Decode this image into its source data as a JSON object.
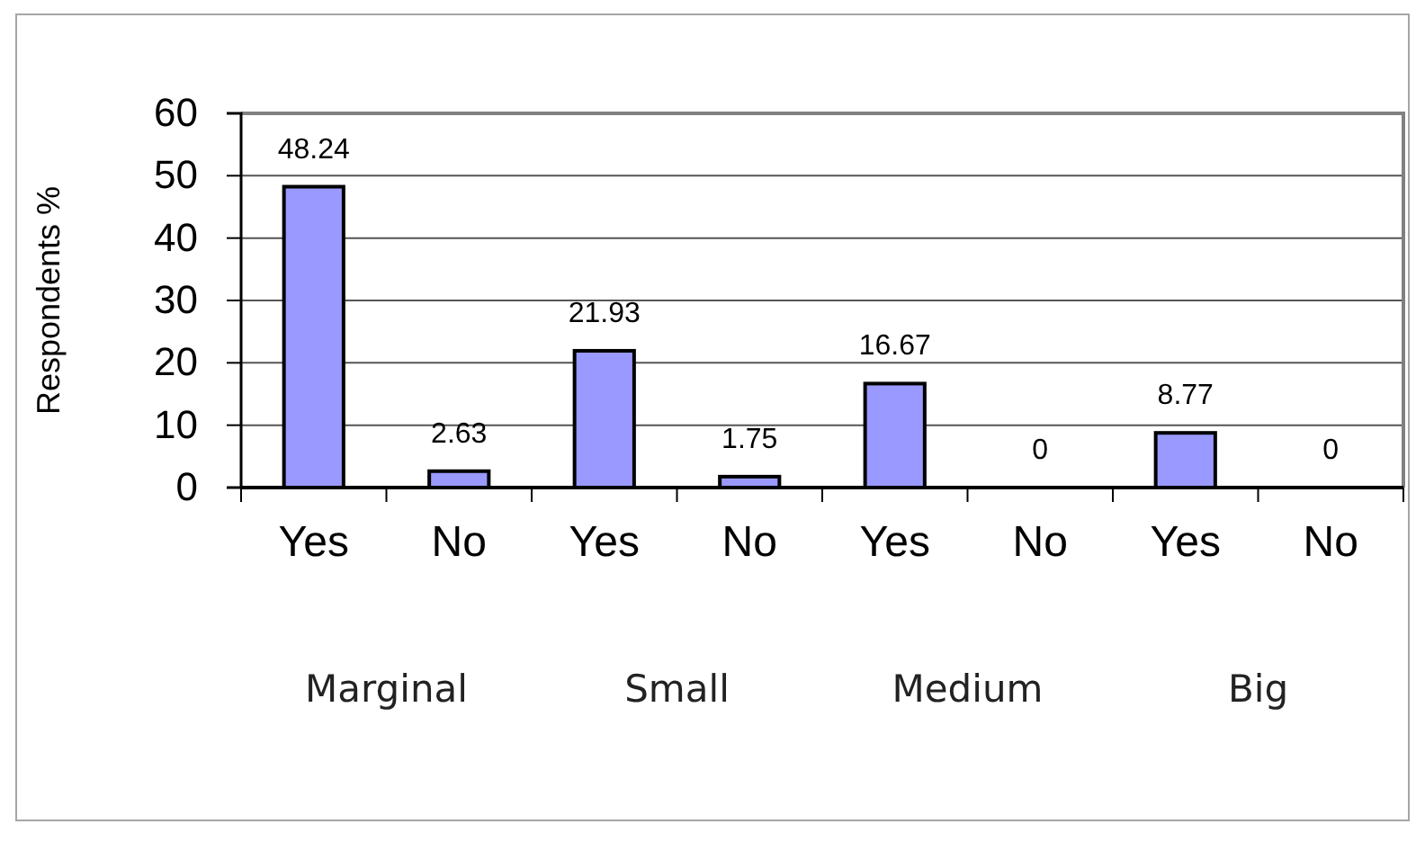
{
  "chart_data": {
    "type": "bar",
    "ylabel": "Respondents %",
    "categories": [
      "Yes",
      "No",
      "Yes",
      "No",
      "Yes",
      "No",
      "Yes",
      "No"
    ],
    "values": [
      48.24,
      2.63,
      21.93,
      1.75,
      16.67,
      0,
      8.77,
      0
    ],
    "color": "#9999ff",
    "ylim": [
      0,
      60
    ],
    "yticks": [
      0,
      10,
      20,
      30,
      40,
      50,
      60
    ],
    "grid": "y",
    "data_labels": true,
    "annotations": [
      "Marginal",
      "Small",
      "Medium",
      "Big"
    ]
  }
}
